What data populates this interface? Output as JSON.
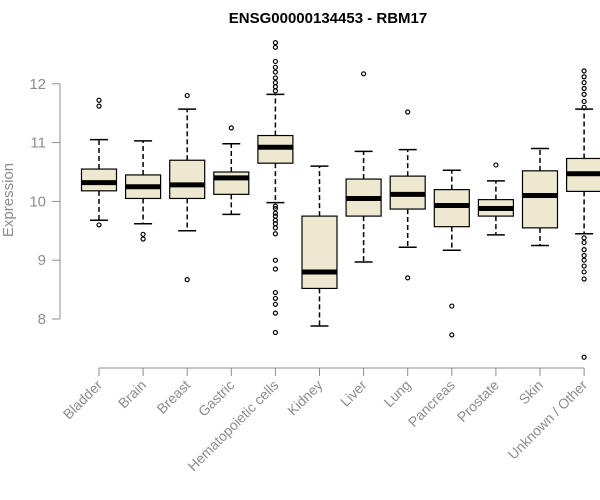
{
  "chart_data": {
    "type": "box",
    "title": "ENSG00000134453 - RBM17",
    "xlabel": "",
    "ylabel": "Expression",
    "ylim": [
      7.25,
      12.95
    ],
    "yticks": [
      8,
      9,
      10,
      11,
      12
    ],
    "grid": false,
    "colors": {
      "box_fill": "#efe8d0",
      "stroke": "#000000",
      "axis": "#8c8c8c"
    },
    "categories": [
      "Bladder",
      "Brain",
      "Breast",
      "Gastric",
      "Hematopoietic cells",
      "Kidney",
      "Liver",
      "Lung",
      "Pancreas",
      "Prostate",
      "Skin",
      "Unknown / Other"
    ],
    "boxes": [
      {
        "category": "Bladder",
        "whisker_low": 9.68,
        "q1": 10.18,
        "median": 10.32,
        "q3": 10.55,
        "whisker_high": 11.05,
        "outliers": [
          9.6,
          11.62,
          11.72
        ]
      },
      {
        "category": "Brain",
        "whisker_low": 9.62,
        "q1": 10.05,
        "median": 10.25,
        "q3": 10.45,
        "whisker_high": 11.03,
        "outliers": [
          9.36,
          9.44
        ]
      },
      {
        "category": "Breast",
        "whisker_low": 9.5,
        "q1": 10.05,
        "median": 10.28,
        "q3": 10.7,
        "whisker_high": 11.57,
        "outliers": [
          8.67,
          11.8
        ]
      },
      {
        "category": "Gastric",
        "whisker_low": 9.78,
        "q1": 10.12,
        "median": 10.4,
        "q3": 10.5,
        "whisker_high": 10.98,
        "outliers": [
          11.25
        ]
      },
      {
        "category": "Hematopoietic cells",
        "whisker_low": 9.98,
        "q1": 10.65,
        "median": 10.92,
        "q3": 11.12,
        "whisker_high": 11.82,
        "outliers": [
          7.77,
          8.1,
          8.25,
          8.35,
          8.45,
          8.85,
          9.0,
          9.45,
          9.55,
          9.62,
          9.68,
          9.75,
          9.8,
          9.88,
          9.92,
          11.88,
          11.95,
          12.02,
          12.1,
          12.2,
          12.28,
          12.38,
          12.62,
          12.7
        ]
      },
      {
        "category": "Kidney",
        "whisker_low": 7.88,
        "q1": 8.52,
        "median": 8.8,
        "q3": 9.75,
        "whisker_high": 10.6,
        "outliers": []
      },
      {
        "category": "Liver",
        "whisker_low": 8.97,
        "q1": 9.75,
        "median": 10.05,
        "q3": 10.38,
        "whisker_high": 10.85,
        "outliers": [
          12.17
        ]
      },
      {
        "category": "Lung",
        "whisker_low": 9.22,
        "q1": 9.87,
        "median": 10.12,
        "q3": 10.43,
        "whisker_high": 10.88,
        "outliers": [
          8.7,
          11.52
        ]
      },
      {
        "category": "Pancreas",
        "whisker_low": 9.17,
        "q1": 9.57,
        "median": 9.93,
        "q3": 10.2,
        "whisker_high": 10.53,
        "outliers": [
          7.73,
          8.22
        ]
      },
      {
        "category": "Prostate",
        "whisker_low": 9.43,
        "q1": 9.75,
        "median": 9.88,
        "q3": 10.03,
        "whisker_high": 10.35,
        "outliers": [
          10.62
        ]
      },
      {
        "category": "Skin",
        "whisker_low": 9.25,
        "q1": 9.55,
        "median": 10.1,
        "q3": 10.52,
        "whisker_high": 10.9,
        "outliers": []
      },
      {
        "category": "Unknown / Other",
        "whisker_low": 9.45,
        "q1": 10.17,
        "median": 10.47,
        "q3": 10.73,
        "whisker_high": 11.57,
        "outliers": [
          7.35,
          8.68,
          8.8,
          8.9,
          9.0,
          9.08,
          9.18,
          9.3,
          9.38,
          11.6,
          11.7,
          11.82,
          11.92,
          12.02,
          12.12,
          12.22
        ]
      }
    ]
  }
}
